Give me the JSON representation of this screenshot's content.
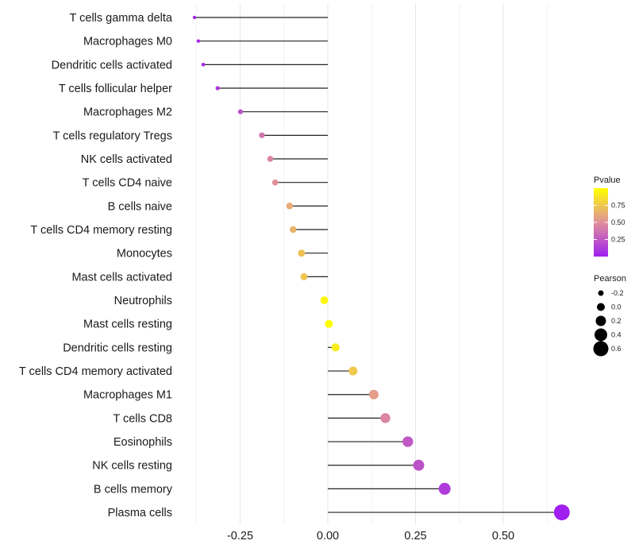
{
  "chart_data": {
    "type": "lollipop",
    "title": "",
    "xlabel": "",
    "ylabel": "",
    "xlim": [
      -0.4,
      0.7
    ],
    "x_ticks": [
      -0.25,
      0.0,
      0.25,
      0.5
    ],
    "x_tick_labels": [
      "-0.25",
      "0.00",
      "0.25",
      "0.50"
    ],
    "x_minor_ticks": [
      -0.375,
      -0.125,
      0.125,
      0.375,
      0.625
    ],
    "grid": true,
    "categories": [
      "T cells gamma delta",
      "Macrophages M0",
      "Dendritic cells activated",
      "T cells follicular helper",
      "Macrophages M2",
      "T cells regulatory  Tregs",
      "NK cells activated",
      "T cells CD4 naive",
      "B cells naive",
      "T cells CD4 memory resting",
      "Monocytes",
      "Mast cells activated",
      "Neutrophils",
      "Mast cells resting",
      "Dendritic cells resting",
      "T cells CD4 memory activated",
      "Macrophages M1",
      "T cells CD8",
      "Eosinophils",
      "NK cells resting",
      "B cells memory",
      "Plasma cells"
    ],
    "series": [
      {
        "name": "Pearson",
        "values": [
          -0.38,
          -0.369,
          -0.355,
          -0.314,
          -0.249,
          -0.188,
          -0.164,
          -0.15,
          -0.109,
          -0.099,
          -0.075,
          -0.068,
          -0.01,
          0.003,
          0.022,
          0.072,
          0.131,
          0.164,
          0.228,
          0.259,
          0.333,
          0.667
        ]
      },
      {
        "name": "Pvalue",
        "values": [
          0.02,
          0.03,
          0.05,
          0.1,
          0.22,
          0.38,
          0.45,
          0.5,
          0.62,
          0.66,
          0.72,
          0.74,
          0.96,
          0.99,
          0.92,
          0.75,
          0.56,
          0.45,
          0.25,
          0.22,
          0.12,
          0.0
        ]
      }
    ],
    "legends": [
      {
        "title": "Pvalue",
        "type": "colorbar",
        "range": [
          0,
          1
        ],
        "ticks": [
          0.25,
          0.5,
          0.75
        ],
        "tick_labels": [
          "0.25",
          "0.50",
          "0.75"
        ],
        "colors": {
          "low": "#a020f0",
          "mid": "#e0909a",
          "high": "#ffff00"
        },
        "placement": "right"
      },
      {
        "title": "Pearson",
        "type": "size",
        "values": [
          -0.2,
          0.0,
          0.2,
          0.4,
          0.6
        ],
        "labels": [
          "-0.2",
          "0.0",
          "0.2",
          "0.4",
          "0.6"
        ],
        "placement": "right"
      }
    ]
  }
}
